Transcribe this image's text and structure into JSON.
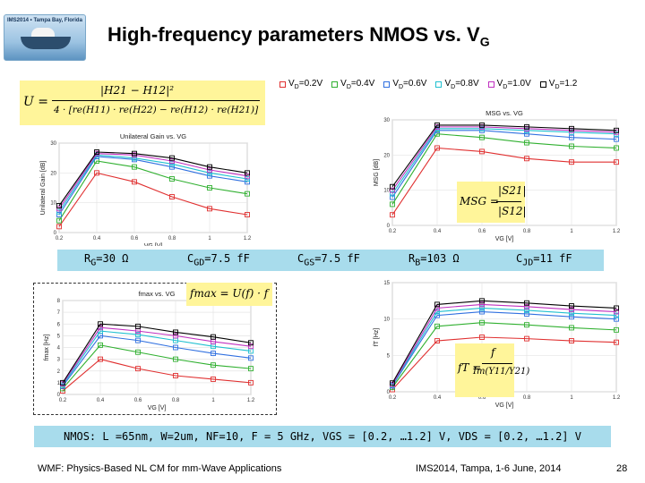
{
  "slide": {
    "title": "High-frequency parameters NMOS vs. V",
    "title_sub": "G",
    "logo_text": "IMS2014 • Tampa Bay, Florida",
    "footer_left": "WMF: Physics-Based NL CM for mm-Wave Applications",
    "footer_center": "IMS2014, Tampa, 1-6 June, 2014",
    "page_number": "28"
  },
  "legend": [
    {
      "label": "V",
      "sub": "D",
      "value": "=0.2V",
      "color": "#e03030"
    },
    {
      "label": "V",
      "sub": "D",
      "value": "=0.4V",
      "color": "#30b030"
    },
    {
      "label": "V",
      "sub": "D",
      "value": "=0.6V",
      "color": "#3070e0"
    },
    {
      "label": "V",
      "sub": "D",
      "value": "=0.8V",
      "color": "#20c0d0"
    },
    {
      "label": "V",
      "sub": "D",
      "value": "=1.0V",
      "color": "#c030c0"
    },
    {
      "label": "V",
      "sub": "D",
      "value": "=1.2",
      "color": "#000000"
    }
  ],
  "equations": {
    "u": {
      "lhs": "U =",
      "num": "|H21 − H12|²",
      "den": "4 · [re(H11) · re(H22) − re(H12) · re(H21)]"
    },
    "msg": {
      "lhs": "MSG =",
      "num": "|S21|",
      "den": "|S12|"
    },
    "fmax": {
      "text": "fmax = U(f) · f"
    },
    "ft": {
      "lhs": "fT =",
      "num": "f",
      "den": "Im(Y11/Y21)"
    }
  },
  "params": [
    {
      "name": "R",
      "sub": "G",
      "value": "=30 Ω"
    },
    {
      "name": "C",
      "sub": "GD",
      "value": "=7.5 fF"
    },
    {
      "name": "C",
      "sub": "GS",
      "value": "=7.5 fF"
    },
    {
      "name": "R",
      "sub": "B",
      "value": "=103 Ω"
    },
    {
      "name": "C",
      "sub": "JD",
      "value": "=11 fF"
    }
  ],
  "caption": "NMOS: L =65nm, W=2um, NF=10, F = 5 GHz, VGS = [0.2, …1.2] V, VDS = [0.2, …1.2] V",
  "chart_data": [
    {
      "type": "line",
      "title": "Unilateral Gain vs. VG",
      "xlabel": "VG [V]",
      "ylabel": "Unilateral Gain [dB]",
      "x": [
        0.2,
        0.4,
        0.6,
        0.8,
        1.0,
        1.2
      ],
      "xticks": [
        "0.2",
        "0.4",
        "0.6",
        "0.8",
        "1",
        "1.2"
      ],
      "yticks": [
        "0",
        "10",
        "20",
        "30"
      ],
      "ylim": [
        0,
        30
      ],
      "series": [
        {
          "name": "VD=0.2V",
          "color": "#e03030",
          "values": [
            2,
            20,
            17,
            12,
            8,
            6
          ]
        },
        {
          "name": "VD=0.4V",
          "color": "#30b030",
          "values": [
            4,
            24,
            22,
            18,
            15,
            13
          ]
        },
        {
          "name": "VD=0.6V",
          "color": "#3070e0",
          "values": [
            6,
            25.5,
            24.5,
            22,
            19,
            17
          ]
        },
        {
          "name": "VD=0.8V",
          "color": "#20c0d0",
          "values": [
            7,
            26,
            25,
            23,
            20,
            18
          ]
        },
        {
          "name": "VD=1.0V",
          "color": "#c030c0",
          "values": [
            8,
            26.5,
            26,
            24,
            21,
            19
          ]
        },
        {
          "name": "VD=1.2",
          "color": "#000000",
          "values": [
            9,
            27,
            26.5,
            25,
            22,
            20
          ]
        }
      ]
    },
    {
      "type": "line",
      "title": "MSG vs. VG",
      "xlabel": "VG [V]",
      "ylabel": "MSG [dB]",
      "x": [
        0.2,
        0.4,
        0.6,
        0.8,
        1.0,
        1.2
      ],
      "xticks": [
        "0.2",
        "0.4",
        "0.6",
        "0.8",
        "1",
        "1.2"
      ],
      "yticks": [
        "0",
        "10",
        "20",
        "30"
      ],
      "ylim": [
        0,
        30
      ],
      "series": [
        {
          "name": "VD=0.2V",
          "color": "#e03030",
          "values": [
            3,
            22,
            21,
            19,
            18,
            18
          ]
        },
        {
          "name": "VD=0.4V",
          "color": "#30b030",
          "values": [
            6,
            26,
            25,
            23.5,
            22.5,
            22
          ]
        },
        {
          "name": "VD=0.6V",
          "color": "#3070e0",
          "values": [
            8,
            27,
            27,
            26,
            25,
            24.5
          ]
        },
        {
          "name": "VD=0.8V",
          "color": "#20c0d0",
          "values": [
            9,
            27.5,
            27.5,
            27,
            26.5,
            26
          ]
        },
        {
          "name": "VD=1.0V",
          "color": "#c030c0",
          "values": [
            10,
            28,
            28,
            27.5,
            27,
            26.5
          ]
        },
        {
          "name": "VD=1.2",
          "color": "#000000",
          "values": [
            11,
            28.5,
            28.5,
            28,
            27.5,
            27
          ]
        }
      ]
    },
    {
      "type": "line",
      "title": "fmax vs. VG",
      "xlabel": "VG [V]",
      "ylabel": "fmax [Hz]",
      "x": [
        0.2,
        0.4,
        0.6,
        0.8,
        1.0,
        1.2
      ],
      "xticks": [
        "0.2",
        "0.4",
        "0.6",
        "0.8",
        "1",
        "1.2"
      ],
      "yticks": [
        "0",
        "1",
        "2",
        "3",
        "4",
        "5",
        "6",
        "7",
        "8"
      ],
      "ylim": [
        0,
        8
      ],
      "series": [
        {
          "name": "VD=0.2V",
          "color": "#e03030",
          "values": [
            0.3,
            3.0,
            2.2,
            1.6,
            1.3,
            1.0
          ]
        },
        {
          "name": "VD=0.4V",
          "color": "#30b030",
          "values": [
            0.5,
            4.2,
            3.6,
            3.0,
            2.5,
            2.2
          ]
        },
        {
          "name": "VD=0.6V",
          "color": "#3070e0",
          "values": [
            0.7,
            5.0,
            4.6,
            4.0,
            3.5,
            3.1
          ]
        },
        {
          "name": "VD=0.8V",
          "color": "#20c0d0",
          "values": [
            0.8,
            5.4,
            5.1,
            4.6,
            4.1,
            3.7
          ]
        },
        {
          "name": "VD=1.0V",
          "color": "#c030c0",
          "values": [
            0.9,
            5.7,
            5.4,
            5.0,
            4.5,
            4.1
          ]
        },
        {
          "name": "VD=1.2",
          "color": "#000000",
          "values": [
            1.0,
            6.0,
            5.8,
            5.3,
            4.9,
            4.4
          ]
        }
      ]
    },
    {
      "type": "line",
      "title": "",
      "xlabel": "VG [V]",
      "ylabel": "fT [Hz]",
      "x": [
        0.2,
        0.4,
        0.6,
        0.8,
        1.0,
        1.2
      ],
      "xticks": [
        "0.2",
        "0.4",
        "0.6",
        "0.8",
        "1",
        "1.2"
      ],
      "yticks": [
        "0",
        "5",
        "10",
        "15"
      ],
      "ylim": [
        0,
        15
      ],
      "series": [
        {
          "name": "VD=0.2V",
          "color": "#e03030",
          "values": [
            0.3,
            7,
            7.5,
            7.3,
            7,
            6.8
          ]
        },
        {
          "name": "VD=0.4V",
          "color": "#30b030",
          "values": [
            0.6,
            9,
            9.5,
            9.2,
            8.8,
            8.5
          ]
        },
        {
          "name": "VD=0.6V",
          "color": "#3070e0",
          "values": [
            0.8,
            10.5,
            11,
            10.7,
            10.3,
            10
          ]
        },
        {
          "name": "VD=0.8V",
          "color": "#20c0d0",
          "values": [
            0.9,
            11,
            11.5,
            11.2,
            10.8,
            10.5
          ]
        },
        {
          "name": "VD=1.0V",
          "color": "#c030c0",
          "values": [
            1.0,
            11.5,
            12,
            11.7,
            11.3,
            11
          ]
        },
        {
          "name": "VD=1.2",
          "color": "#000000",
          "values": [
            1.2,
            12,
            12.5,
            12.2,
            11.8,
            11.5
          ]
        }
      ]
    }
  ]
}
